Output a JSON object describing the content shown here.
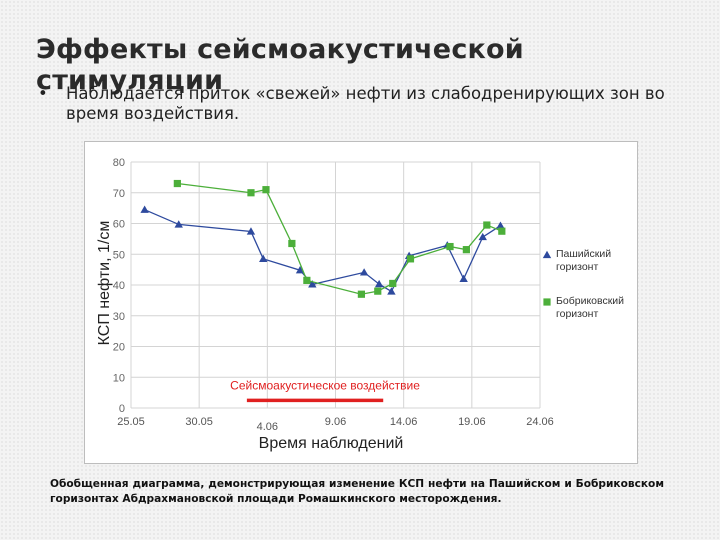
{
  "slide": {
    "title": "Эффекты сейсмоакустической стимуляции",
    "bullet_marker": "•",
    "bullet": "Наблюдается приток «свежей» нефти из слабодренирующих зон во время воздействия.",
    "caption": "Обобщенная диаграмма, демонстрирующая изменение КСП нефти на Пашийском и Бобриковском горизонтах Абдрахмановской площади Ромашкинского месторождения."
  },
  "chart_data": {
    "type": "line",
    "ylabel": "КСП нефти, 1/см",
    "xlabel": "Время наблюдений",
    "ylim": [
      0,
      80
    ],
    "y_ticks": [
      0,
      10,
      20,
      30,
      40,
      50,
      60,
      70,
      80
    ],
    "xlim": [
      0,
      30
    ],
    "x_ticks": [
      {
        "x": 0,
        "label": "25.05",
        "row": "upper"
      },
      {
        "x": 5,
        "label": "30.05",
        "row": "upper"
      },
      {
        "x": 10,
        "label": "4.06",
        "row": "lower"
      },
      {
        "x": 15,
        "label": "9.06",
        "row": "upper"
      },
      {
        "x": 20,
        "label": "14.06",
        "row": "upper"
      },
      {
        "x": 25,
        "label": "19.06",
        "row": "upper"
      },
      {
        "x": 30,
        "label": "24.06",
        "row": "upper"
      }
    ],
    "grid": true,
    "legend_position": "right",
    "annotation": {
      "label": "Сейсмоакустическое воздействие",
      "x_start": 8.5,
      "x_end": 18.5,
      "y": 2.5,
      "color": "#e02020"
    },
    "series": [
      {
        "name": "Пашийский горизонт",
        "name_lines": [
          "Пашийский",
          "горизонт"
        ],
        "color": "#2e4a9e",
        "marker": "triangle",
        "x": [
          1,
          3.5,
          8.8,
          9.7,
          12.4,
          13.3,
          17.1,
          18.2,
          19.1,
          20.4,
          23.2,
          24.4,
          25.8,
          27.1
        ],
        "y": [
          64.5,
          59.7,
          57.4,
          48.5,
          44.8,
          40.2,
          44.1,
          40.3,
          37.9,
          49.5,
          52.9,
          42.0,
          55.6,
          59.3
        ]
      },
      {
        "name": "Бобриковский горизонт",
        "name_lines": [
          "Бобриковский",
          "горизонт"
        ],
        "color": "#4caf3a",
        "marker": "square",
        "x": [
          3.4,
          8.8,
          9.9,
          11.8,
          12.9,
          16.9,
          18.1,
          19.2,
          20.5,
          23.4,
          24.6,
          26.1,
          27.2
        ],
        "y": [
          73.0,
          70.0,
          71.0,
          53.5,
          41.5,
          37.0,
          38.0,
          40.5,
          48.5,
          52.5,
          51.5,
          59.5,
          57.5
        ]
      }
    ]
  }
}
